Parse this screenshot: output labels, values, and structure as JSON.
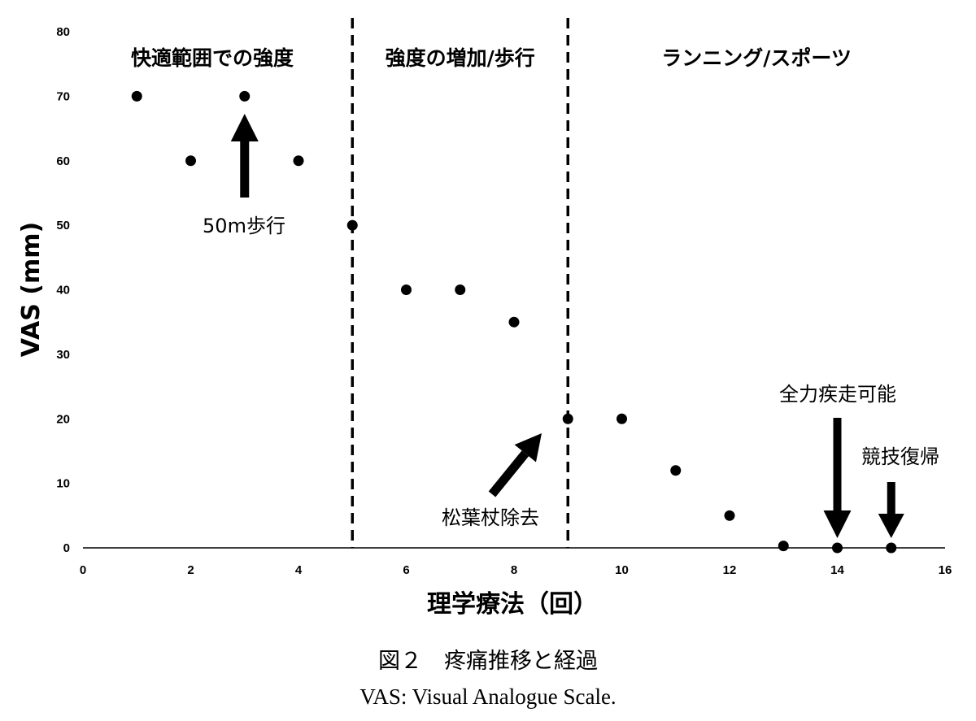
{
  "chart_data": {
    "type": "scatter",
    "xlabel": "理学療法（回）",
    "ylabel": "VAS (mm)",
    "xlim": [
      0,
      16
    ],
    "ylim": [
      0,
      80
    ],
    "xticks": [
      "0",
      "2",
      "4",
      "6",
      "8",
      "10",
      "12",
      "14",
      "16"
    ],
    "yticks": [
      "0",
      "10",
      "20",
      "30",
      "40",
      "50",
      "60",
      "70",
      "80"
    ],
    "grid": false,
    "points": [
      {
        "x": 1,
        "y": 70
      },
      {
        "x": 2,
        "y": 60
      },
      {
        "x": 3,
        "y": 70
      },
      {
        "x": 4,
        "y": 60
      },
      {
        "x": 5,
        "y": 50
      },
      {
        "x": 6,
        "y": 40
      },
      {
        "x": 7,
        "y": 40
      },
      {
        "x": 8,
        "y": 35
      },
      {
        "x": 9,
        "y": 20
      },
      {
        "x": 10,
        "y": 20
      },
      {
        "x": 11,
        "y": 12
      },
      {
        "x": 12,
        "y": 5
      },
      {
        "x": 13,
        "y": 0.3
      },
      {
        "x": 14,
        "y": 0
      },
      {
        "x": 15,
        "y": 0
      }
    ],
    "phase_dividers": [
      5,
      9
    ],
    "phases": [
      {
        "label": "快適範囲での強度",
        "x_center": 2.4
      },
      {
        "label": "強度の増加/歩行",
        "x_center": 7.0
      },
      {
        "label": "ランニング/スポーツ",
        "x_center": 12.5
      }
    ],
    "annotations": [
      {
        "text": "50m歩行",
        "x": 3,
        "y": 55
      },
      {
        "text": "松葉杖除去",
        "x": 8.5,
        "y": 20
      },
      {
        "text": "全力疾走可能",
        "x": 14,
        "y": 0
      },
      {
        "text": "競技復帰",
        "x": 15,
        "y": 0
      }
    ]
  },
  "caption": {
    "title": "図２　疼痛推移と経過",
    "note": "VAS: Visual Analogue Scale."
  }
}
